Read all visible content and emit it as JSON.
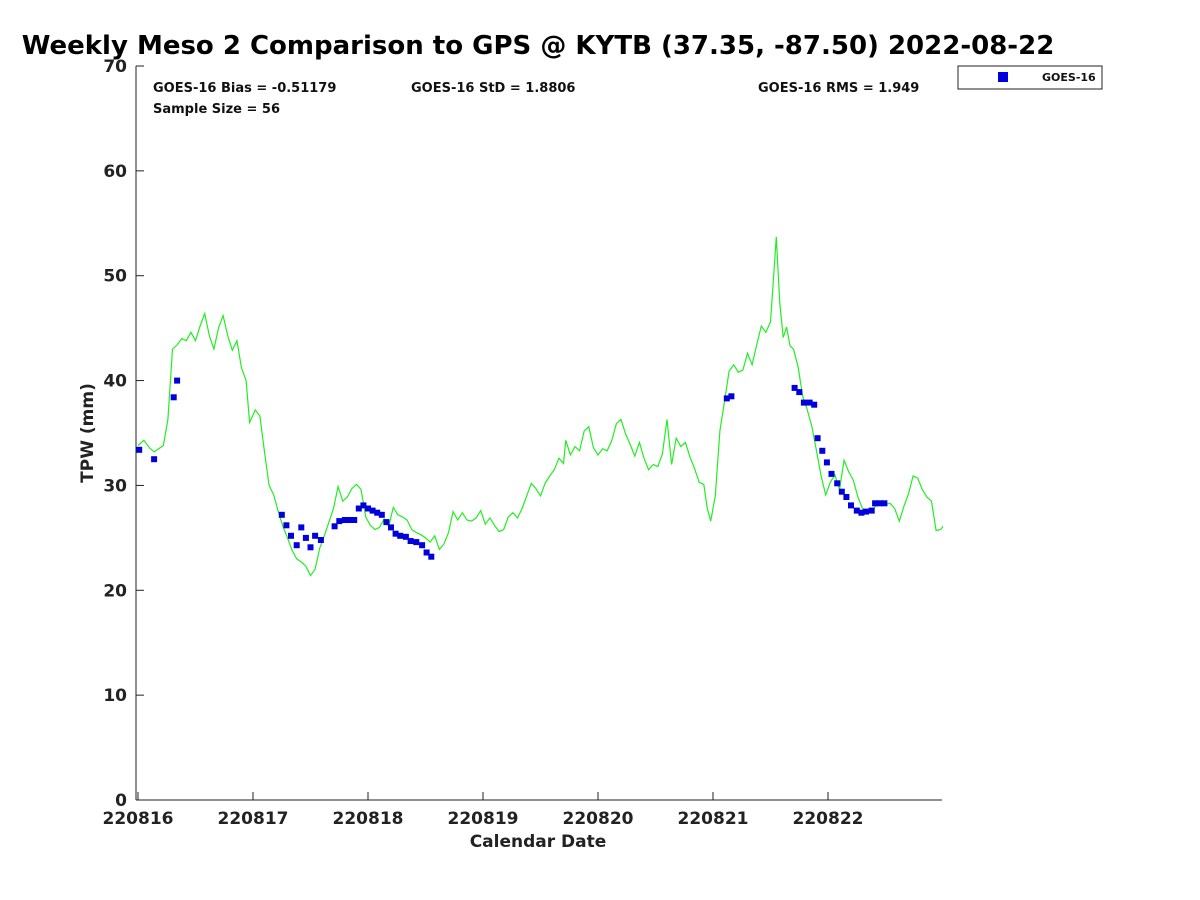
{
  "chart_data": {
    "type": "scatter",
    "title": "Weekly Meso 2 Comparison to GPS @ KYTB (37.35, -87.50) 2022-08-22",
    "xlabel": "Calendar Date",
    "ylabel": "TPW (mm)",
    "ylim": [
      0,
      70
    ],
    "xlim": [
      0,
      7
    ],
    "yticks": [
      0,
      10,
      20,
      30,
      40,
      50,
      60,
      70
    ],
    "xticks": [
      {
        "value": 0,
        "label": "220816"
      },
      {
        "value": 1,
        "label": "220817"
      },
      {
        "value": 2,
        "label": "220818"
      },
      {
        "value": 3,
        "label": "220819"
      },
      {
        "value": 4,
        "label": "220820"
      },
      {
        "value": 5,
        "label": "220821"
      },
      {
        "value": 6,
        "label": "220822"
      }
    ],
    "grid": false,
    "legend_position": "top-right",
    "stats": {
      "bias": "GOES-16 Bias = -0.51179",
      "std": "GOES-16 StD = 1.8806",
      "rms": "GOES-16 RMS = 1.949",
      "sample": "Sample Size = 56"
    },
    "series": [
      {
        "name": "GOES-16",
        "kind": "scatter",
        "color": "#0000dd",
        "points": [
          [
            0.01,
            33.4
          ],
          [
            0.14,
            32.5
          ],
          [
            0.31,
            38.4
          ],
          [
            0.34,
            40.0
          ],
          [
            1.25,
            27.2
          ],
          [
            1.29,
            26.2
          ],
          [
            1.33,
            25.2
          ],
          [
            1.38,
            24.3
          ],
          [
            1.42,
            26.0
          ],
          [
            1.46,
            25.0
          ],
          [
            1.5,
            24.1
          ],
          [
            1.54,
            25.2
          ],
          [
            1.59,
            24.8
          ],
          [
            1.71,
            26.1
          ],
          [
            1.75,
            26.6
          ],
          [
            1.8,
            26.7
          ],
          [
            1.84,
            26.7
          ],
          [
            1.88,
            26.7
          ],
          [
            1.92,
            27.8
          ],
          [
            1.96,
            28.1
          ],
          [
            2.0,
            27.8
          ],
          [
            2.04,
            27.6
          ],
          [
            2.08,
            27.4
          ],
          [
            2.12,
            27.2
          ],
          [
            2.16,
            26.5
          ],
          [
            2.2,
            26.0
          ],
          [
            2.24,
            25.4
          ],
          [
            2.28,
            25.2
          ],
          [
            2.33,
            25.1
          ],
          [
            2.37,
            24.7
          ],
          [
            2.42,
            24.6
          ],
          [
            2.47,
            24.3
          ],
          [
            2.51,
            23.6
          ],
          [
            2.55,
            23.2
          ],
          [
            5.12,
            38.3
          ],
          [
            5.16,
            38.5
          ],
          [
            5.71,
            39.3
          ],
          [
            5.75,
            38.9
          ],
          [
            5.79,
            37.9
          ],
          [
            5.84,
            37.9
          ],
          [
            5.88,
            37.7
          ],
          [
            5.91,
            34.5
          ],
          [
            5.95,
            33.3
          ],
          [
            5.99,
            32.2
          ],
          [
            6.03,
            31.1
          ],
          [
            6.08,
            30.2
          ],
          [
            6.12,
            29.4
          ],
          [
            6.16,
            28.9
          ],
          [
            6.2,
            28.1
          ],
          [
            6.25,
            27.6
          ],
          [
            6.29,
            27.4
          ],
          [
            6.33,
            27.5
          ],
          [
            6.38,
            27.6
          ],
          [
            6.41,
            28.3
          ],
          [
            6.45,
            28.3
          ],
          [
            6.49,
            28.3
          ]
        ]
      },
      {
        "name": "GPS",
        "kind": "line",
        "color": "#22ee22",
        "points": [
          [
            0.0,
            33.8
          ],
          [
            0.05,
            34.3
          ],
          [
            0.1,
            33.6
          ],
          [
            0.14,
            33.2
          ],
          [
            0.18,
            33.5
          ],
          [
            0.22,
            33.8
          ],
          [
            0.26,
            36.3
          ],
          [
            0.3,
            43.0
          ],
          [
            0.34,
            43.4
          ],
          [
            0.38,
            44.0
          ],
          [
            0.42,
            43.8
          ],
          [
            0.46,
            44.6
          ],
          [
            0.5,
            43.8
          ],
          [
            0.54,
            45.2
          ],
          [
            0.58,
            46.4
          ],
          [
            0.62,
            44.3
          ],
          [
            0.66,
            43.0
          ],
          [
            0.7,
            45.0
          ],
          [
            0.74,
            46.2
          ],
          [
            0.78,
            44.3
          ],
          [
            0.82,
            42.9
          ],
          [
            0.86,
            43.8
          ],
          [
            0.9,
            41.2
          ],
          [
            0.94,
            40.0
          ],
          [
            0.97,
            36.0
          ],
          [
            1.02,
            37.2
          ],
          [
            1.06,
            36.6
          ],
          [
            1.1,
            33.2
          ],
          [
            1.14,
            30.0
          ],
          [
            1.18,
            29.1
          ],
          [
            1.22,
            27.5
          ],
          [
            1.26,
            26.1
          ],
          [
            1.3,
            25.0
          ],
          [
            1.34,
            23.8
          ],
          [
            1.38,
            23.0
          ],
          [
            1.42,
            22.7
          ],
          [
            1.46,
            22.3
          ],
          [
            1.5,
            21.4
          ],
          [
            1.54,
            22.0
          ],
          [
            1.58,
            24.0
          ],
          [
            1.62,
            25.2
          ],
          [
            1.66,
            26.5
          ],
          [
            1.7,
            27.8
          ],
          [
            1.74,
            29.9
          ],
          [
            1.78,
            28.5
          ],
          [
            1.82,
            28.9
          ],
          [
            1.86,
            29.7
          ],
          [
            1.9,
            30.1
          ],
          [
            1.94,
            29.6
          ],
          [
            1.98,
            27.0
          ],
          [
            2.02,
            26.2
          ],
          [
            2.06,
            25.8
          ],
          [
            2.1,
            26.0
          ],
          [
            2.14,
            26.8
          ],
          [
            2.18,
            26.1
          ],
          [
            2.22,
            27.9
          ],
          [
            2.26,
            27.2
          ],
          [
            2.3,
            27.0
          ],
          [
            2.34,
            26.7
          ],
          [
            2.38,
            25.8
          ],
          [
            2.42,
            25.5
          ],
          [
            2.46,
            25.3
          ],
          [
            2.5,
            25.0
          ],
          [
            2.54,
            24.6
          ],
          [
            2.58,
            25.2
          ],
          [
            2.62,
            23.9
          ],
          [
            2.66,
            24.4
          ],
          [
            2.7,
            25.5
          ],
          [
            2.74,
            27.5
          ],
          [
            2.78,
            26.7
          ],
          [
            2.82,
            27.4
          ],
          [
            2.86,
            26.7
          ],
          [
            2.9,
            26.6
          ],
          [
            2.94,
            26.9
          ],
          [
            2.98,
            27.6
          ],
          [
            3.02,
            26.3
          ],
          [
            3.06,
            26.9
          ],
          [
            3.1,
            26.2
          ],
          [
            3.14,
            25.6
          ],
          [
            3.18,
            25.8
          ],
          [
            3.22,
            27.0
          ],
          [
            3.26,
            27.4
          ],
          [
            3.3,
            26.9
          ],
          [
            3.34,
            27.8
          ],
          [
            3.38,
            29.0
          ],
          [
            3.42,
            30.2
          ],
          [
            3.46,
            29.7
          ],
          [
            3.5,
            29.0
          ],
          [
            3.54,
            30.2
          ],
          [
            3.58,
            30.9
          ],
          [
            3.62,
            31.5
          ],
          [
            3.66,
            32.6
          ],
          [
            3.7,
            32.1
          ],
          [
            3.72,
            34.3
          ],
          [
            3.76,
            32.9
          ],
          [
            3.8,
            33.7
          ],
          [
            3.84,
            33.3
          ],
          [
            3.88,
            35.2
          ],
          [
            3.92,
            35.6
          ],
          [
            3.96,
            33.6
          ],
          [
            4.0,
            32.9
          ],
          [
            4.04,
            33.5
          ],
          [
            4.08,
            33.3
          ],
          [
            4.12,
            34.3
          ],
          [
            4.16,
            35.9
          ],
          [
            4.2,
            36.3
          ],
          [
            4.24,
            34.9
          ],
          [
            4.28,
            33.9
          ],
          [
            4.32,
            32.8
          ],
          [
            4.36,
            34.1
          ],
          [
            4.4,
            32.6
          ],
          [
            4.44,
            31.5
          ],
          [
            4.48,
            32.0
          ],
          [
            4.52,
            31.8
          ],
          [
            4.56,
            33.0
          ],
          [
            4.6,
            36.3
          ],
          [
            4.64,
            32.0
          ],
          [
            4.68,
            34.5
          ],
          [
            4.72,
            33.7
          ],
          [
            4.76,
            34.1
          ],
          [
            4.8,
            32.7
          ],
          [
            4.84,
            31.6
          ],
          [
            4.88,
            30.3
          ],
          [
            4.92,
            30.1
          ],
          [
            4.95,
            27.8
          ],
          [
            4.98,
            26.6
          ],
          [
            5.02,
            29.0
          ],
          [
            5.06,
            35.2
          ],
          [
            5.1,
            38.0
          ],
          [
            5.14,
            40.9
          ],
          [
            5.18,
            41.5
          ],
          [
            5.22,
            40.8
          ],
          [
            5.26,
            41.0
          ],
          [
            5.3,
            42.6
          ],
          [
            5.34,
            41.5
          ],
          [
            5.38,
            43.4
          ],
          [
            5.42,
            45.2
          ],
          [
            5.46,
            44.6
          ],
          [
            5.5,
            45.6
          ],
          [
            5.52,
            48.8
          ],
          [
            5.55,
            53.7
          ],
          [
            5.58,
            47.5
          ],
          [
            5.61,
            44.1
          ],
          [
            5.64,
            45.1
          ],
          [
            5.67,
            43.3
          ],
          [
            5.7,
            43.0
          ],
          [
            5.74,
            41.3
          ],
          [
            5.78,
            38.5
          ],
          [
            5.82,
            37.2
          ],
          [
            5.86,
            35.6
          ],
          [
            5.9,
            33.3
          ],
          [
            5.94,
            30.9
          ],
          [
            5.98,
            29.1
          ],
          [
            6.02,
            30.3
          ],
          [
            6.06,
            31.0
          ],
          [
            6.1,
            29.6
          ],
          [
            6.14,
            32.4
          ],
          [
            6.18,
            31.3
          ],
          [
            6.22,
            30.5
          ],
          [
            6.26,
            28.9
          ],
          [
            6.3,
            27.8
          ],
          [
            6.34,
            27.4
          ],
          [
            6.38,
            27.6
          ],
          [
            6.42,
            28.1
          ],
          [
            6.46,
            28.5
          ],
          [
            6.5,
            28.2
          ],
          [
            6.54,
            28.3
          ],
          [
            6.58,
            27.8
          ],
          [
            6.62,
            26.6
          ],
          [
            6.66,
            28.0
          ],
          [
            6.7,
            29.2
          ],
          [
            6.74,
            30.9
          ],
          [
            6.78,
            30.7
          ],
          [
            6.82,
            29.6
          ],
          [
            6.86,
            28.9
          ],
          [
            6.9,
            28.5
          ],
          [
            6.94,
            25.7
          ],
          [
            6.98,
            25.8
          ],
          [
            7.0,
            26.1
          ]
        ]
      }
    ]
  }
}
